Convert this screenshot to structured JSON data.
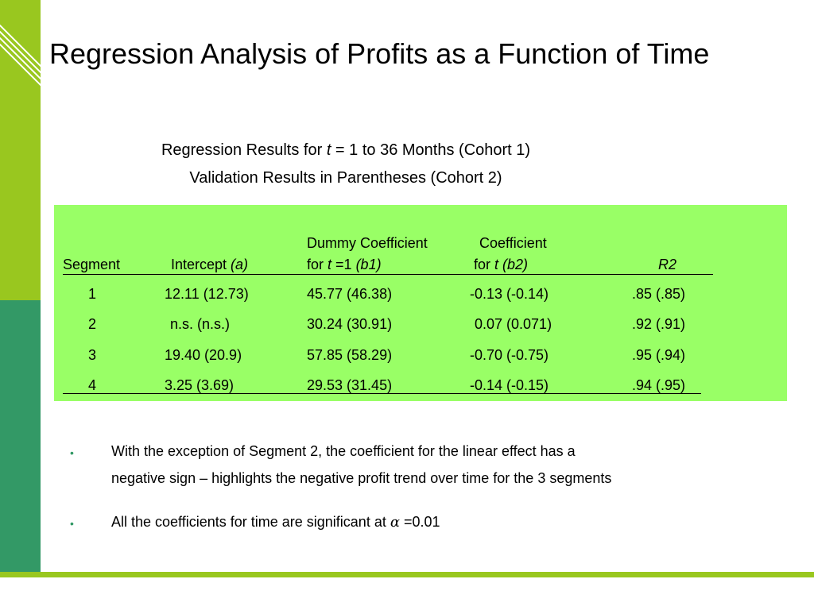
{
  "title": "Regression Analysis of Profits as a Function of Time",
  "subtitle": {
    "line1_pre": "Regression Results for ",
    "line1_var": "t",
    "line1_post": " = 1 to 36 Months (Cohort 1)",
    "line2": "Validation Results in Parentheses (Cohort 2)"
  },
  "table": {
    "headers": {
      "segment": "Segment",
      "intercept": "Intercept ",
      "intercept_sym": "(a)",
      "dummy_line1": "Dummy Coefficient",
      "dummy_pre": "for ",
      "dummy_t": "t",
      "dummy_mid": " =1 ",
      "dummy_sym": "(b1)",
      "coef_line1": "Coefficient",
      "coef_pre": "for ",
      "coef_t": "t",
      "coef_sym": " (b2)",
      "r2": "R2"
    },
    "rows": [
      {
        "segment": "1",
        "intercept": "12.11 (12.73)",
        "dummy": "45.77 (46.38)",
        "coef": "-0.13 (-0.14)",
        "r2": ".85 (.85)"
      },
      {
        "segment": "2",
        "intercept": "n.s. (n.s.)",
        "dummy": "30.24 (30.91)",
        "coef": "0.07 (0.071)",
        "r2": ".92 (.91)"
      },
      {
        "segment": "3",
        "intercept": "19.40 (20.9)",
        "dummy": "57.85 (58.29)",
        "coef": "-0.70 (-0.75)",
        "r2": ".95 (.94)"
      },
      {
        "segment": "4",
        "intercept": "3.25 (3.69)",
        "dummy": "29.53 (31.45)",
        "coef": "-0.14 (-0.15)",
        "r2": ".94 (.95)"
      }
    ]
  },
  "bullets": {
    "b1_line1": "With the exception of Segment 2, the coefficient for the linear effect has a",
    "b1_line2": "negative sign – highlights the negative profit trend over time for the 3 segments",
    "b2_pre": "All the coefficients for time are significant at ",
    "b2_alpha": "α",
    "b2_post": " =0.01",
    "marker": "•"
  },
  "colors": {
    "lime": "#99c71f",
    "green": "#339966",
    "table_bg": "#99ff66"
  }
}
